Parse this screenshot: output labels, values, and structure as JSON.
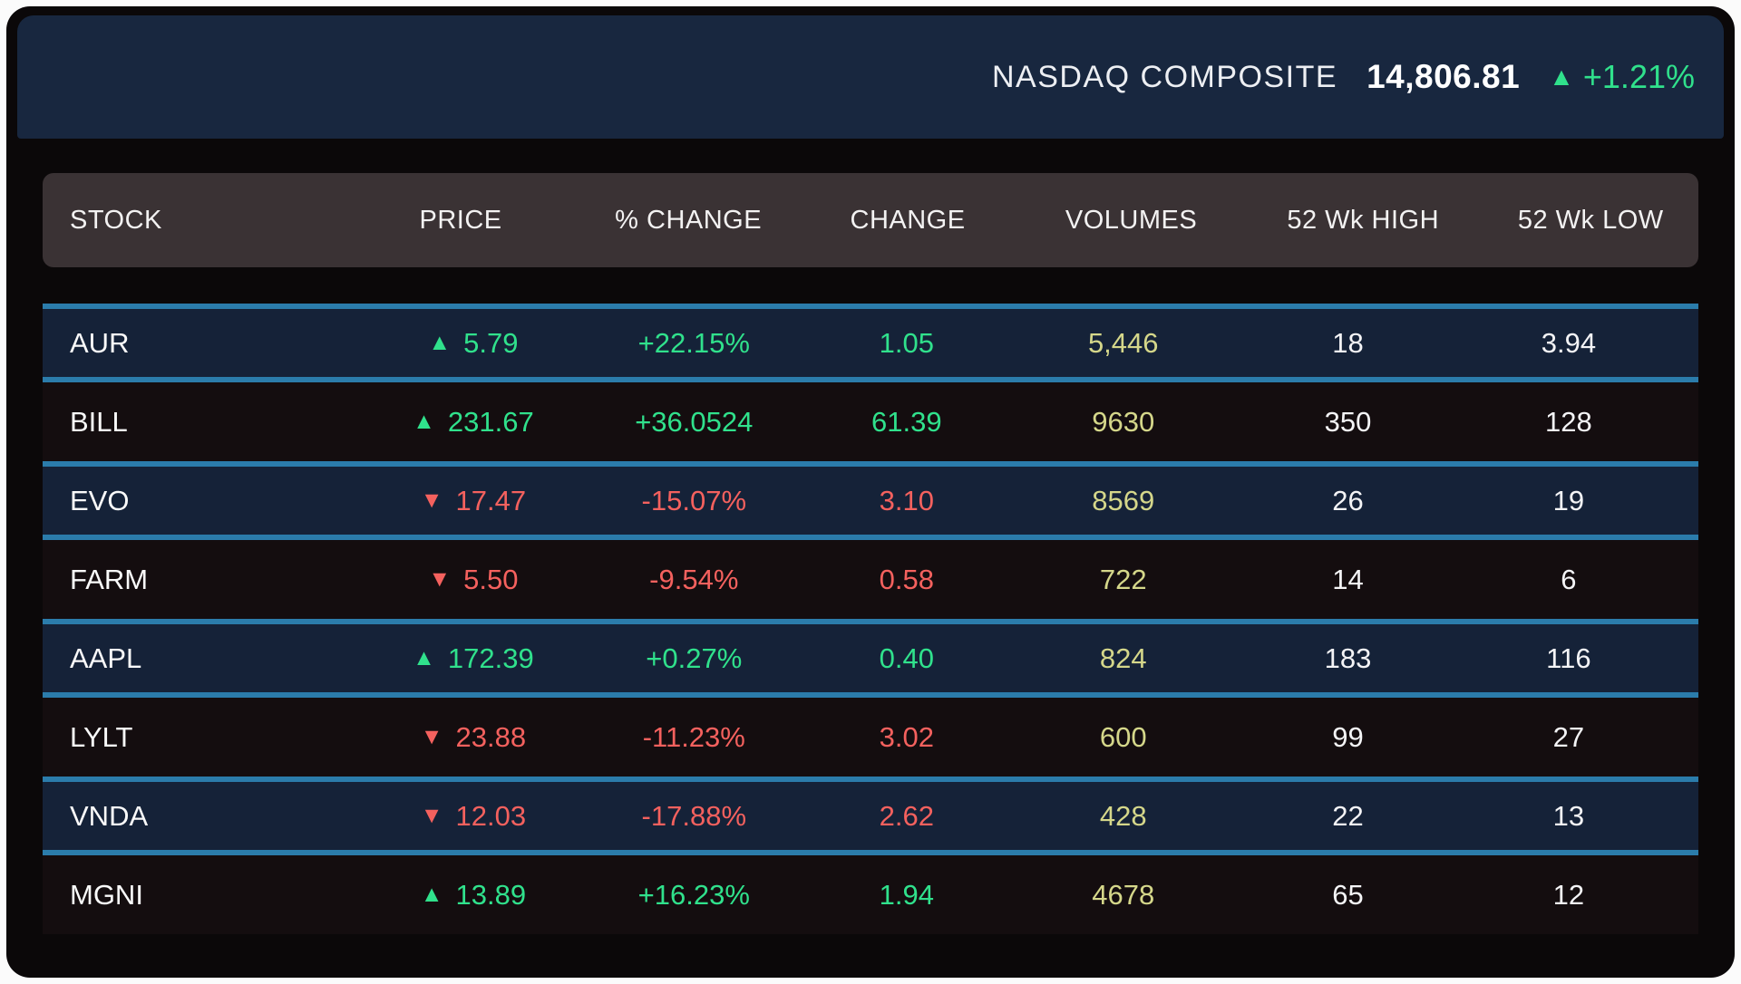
{
  "header": {
    "index_name": "NASDAQ COMPOSITE",
    "index_value": "14,806.81",
    "index_change": "+1.21%",
    "direction": "up"
  },
  "table": {
    "columns": {
      "stock": "STOCK",
      "price": "PRICE",
      "pct_change": "% CHANGE",
      "change": "CHANGE",
      "volumes": "VOLUMES",
      "high": "52 Wk HIGH",
      "low": "52 Wk LOW"
    },
    "rows": [
      {
        "stock": "AUR",
        "direction": "up",
        "price": "5.79",
        "pct_change": "+22.15%",
        "change": "1.05",
        "volumes": "5,446",
        "high": "18",
        "low": "3.94"
      },
      {
        "stock": "BILL",
        "direction": "up",
        "price": "231.67",
        "pct_change": "+36.0524",
        "change": "61.39",
        "volumes": "9630",
        "high": "350",
        "low": "128"
      },
      {
        "stock": "EVO",
        "direction": "down",
        "price": "17.47",
        "pct_change": "-15.07%",
        "change": "3.10",
        "volumes": "8569",
        "high": "26",
        "low": "19"
      },
      {
        "stock": "FARM",
        "direction": "down",
        "price": "5.50",
        "pct_change": "-9.54%",
        "change": "0.58",
        "volumes": "722",
        "high": "14",
        "low": "6"
      },
      {
        "stock": "AAPL",
        "direction": "up",
        "price": "172.39",
        "pct_change": "+0.27%",
        "change": "0.40",
        "volumes": "824",
        "high": "183",
        "low": "116"
      },
      {
        "stock": "LYLT",
        "direction": "down",
        "price": "23.88",
        "pct_change": "-11.23%",
        "change": "3.02",
        "volumes": "600",
        "high": "99",
        "low": "27"
      },
      {
        "stock": "VNDA",
        "direction": "down",
        "price": "12.03",
        "pct_change": "-17.88%",
        "change": "2.62",
        "volumes": "428",
        "high": "22",
        "low": "13"
      },
      {
        "stock": "MGNI",
        "direction": "up",
        "price": "13.89",
        "pct_change": "+16.23%",
        "change": "1.94",
        "volumes": "4678",
        "high": "65",
        "low": "12"
      }
    ]
  },
  "colors": {
    "up": "#30e18c",
    "down": "#f4615e",
    "volumes": "#d5d78a",
    "divider": "#2b7cab",
    "navy-row": "#152238",
    "dark-row": "#140d0f",
    "topbar": "#18273f",
    "thead": "#3a3234"
  }
}
